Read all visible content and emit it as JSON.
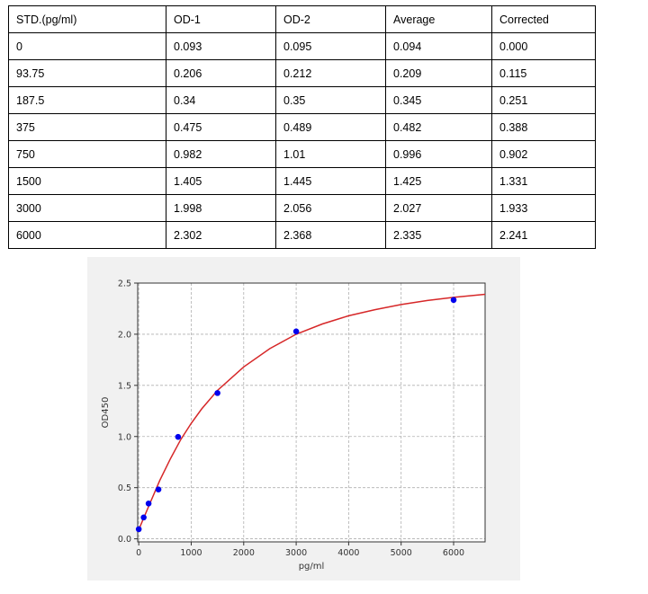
{
  "table": {
    "headers": [
      "STD.(pg/ml)",
      "OD-1",
      "OD-2",
      "Average",
      "Corrected"
    ],
    "rows": [
      [
        "0",
        "0.093",
        "0.095",
        "0.094",
        "0.000"
      ],
      [
        "93.75",
        "0.206",
        "0.212",
        "0.209",
        "0.115"
      ],
      [
        "187.5",
        "0.34",
        "0.35",
        "0.345",
        "0.251"
      ],
      [
        "375",
        "0.475",
        "0.489",
        "0.482",
        "0.388"
      ],
      [
        "750",
        "0.982",
        "1.01",
        "0.996",
        "0.902"
      ],
      [
        "1500",
        "1.405",
        "1.445",
        "1.425",
        "1.331"
      ],
      [
        "3000",
        "1.998",
        "2.056",
        "2.027",
        "1.933"
      ],
      [
        "6000",
        "2.302",
        "2.368",
        "2.335",
        "2.241"
      ]
    ]
  },
  "chart_data": {
    "type": "scatter",
    "title": "",
    "xlabel": "pg/ml",
    "ylabel": "OD450",
    "xlim": [
      -20,
      6600
    ],
    "ylim": [
      -0.03,
      2.5
    ],
    "xticks": [
      0,
      1000,
      2000,
      3000,
      4000,
      5000,
      6000
    ],
    "xtick_labels": [
      "0",
      "1000",
      "2000",
      "3000",
      "4000",
      "5000",
      "6000"
    ],
    "yticks": [
      0.0,
      0.5,
      1.0,
      1.5,
      2.0,
      2.5
    ],
    "ytick_labels": [
      "0.0",
      "0.5",
      "1.0",
      "1.5",
      "2.0",
      "2.5"
    ],
    "grid": true,
    "series": [
      {
        "kind": "points",
        "color": "#0000ee",
        "x": [
          0,
          93.75,
          187.5,
          375,
          750,
          1500,
          3000,
          6000
        ],
        "y": [
          0.094,
          0.209,
          0.345,
          0.482,
          0.996,
          1.425,
          2.027,
          2.335
        ]
      },
      {
        "kind": "fit-curve",
        "color": "#d62728",
        "x": [
          0,
          200,
          400,
          600,
          800,
          1000,
          1200,
          1500,
          2000,
          2500,
          3000,
          3500,
          4000,
          4500,
          5000,
          5500,
          6000,
          6600
        ],
        "y": [
          0.09,
          0.33,
          0.57,
          0.78,
          0.97,
          1.13,
          1.27,
          1.45,
          1.68,
          1.86,
          2.0,
          2.1,
          2.18,
          2.24,
          2.29,
          2.33,
          2.36,
          2.39
        ]
      }
    ]
  }
}
